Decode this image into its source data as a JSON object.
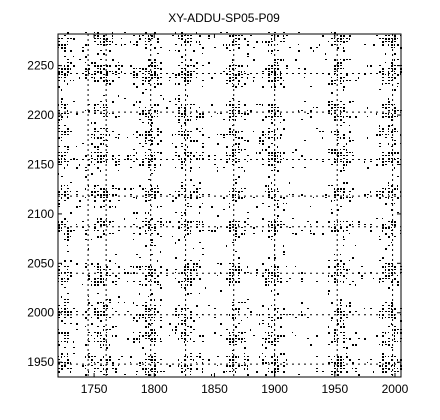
{
  "chart_data": {
    "type": "heatmap",
    "subtype": "recurrence-plot",
    "title": "XY-ADDU-SP05-P09",
    "xlabel": "",
    "ylabel": "",
    "xlim": [
      1720,
      2005
    ],
    "ylim": [
      1935,
      2282
    ],
    "x_ticks": [
      1750,
      1800,
      1850,
      1900,
      1950,
      2000
    ],
    "y_ticks": [
      1950,
      2000,
      2050,
      2100,
      2150,
      2200,
      2250
    ],
    "grid": false,
    "legend": "none",
    "colormap": {
      "recurrent": "#000000",
      "non_recurrent": "#ffffff"
    },
    "dense_x_bands": [
      [
        1720,
        1728
      ],
      [
        1748,
        1762
      ],
      [
        1790,
        1800
      ],
      [
        1822,
        1830
      ],
      [
        1862,
        1872
      ],
      [
        1893,
        1902
      ],
      [
        1947,
        1958
      ],
      [
        1988,
        2000
      ]
    ],
    "dense_y_bands": [
      [
        1938,
        1956
      ],
      [
        1966,
        1978
      ],
      [
        1990,
        2004
      ],
      [
        2028,
        2046
      ],
      [
        2080,
        2092
      ],
      [
        2112,
        2124
      ],
      [
        2150,
        2162
      ],
      [
        2172,
        2182
      ],
      [
        2196,
        2210
      ],
      [
        2232,
        2250
      ],
      [
        2266,
        2278
      ]
    ],
    "blank_x_bands": [
      [
        1730,
        1740
      ],
      [
        1770,
        1782
      ],
      [
        1806,
        1815
      ],
      [
        1840,
        1858
      ],
      [
        1878,
        1888
      ],
      [
        1908,
        1942
      ],
      [
        1962,
        1985
      ]
    ],
    "blank_y_bands": [
      [
        1958,
        1964
      ],
      [
        2008,
        2024
      ],
      [
        2052,
        2072
      ],
      [
        2094,
        2104
      ],
      [
        2128,
        2144
      ],
      [
        2184,
        2192
      ],
      [
        2214,
        2226
      ],
      [
        2254,
        2262
      ]
    ]
  }
}
